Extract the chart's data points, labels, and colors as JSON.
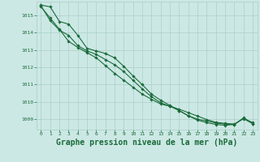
{
  "background_color": "#cce8e4",
  "plot_bg_color": "#cce8e4",
  "grid_color": "#aacfca",
  "line_color": "#1a6b3a",
  "marker_color": "#1a6b3a",
  "title": "Graphe pression niveau de la mer (hPa)",
  "title_fontsize": 7,
  "title_color": "#1a6b3a",
  "xlim": [
    -0.5,
    23.5
  ],
  "ylim": [
    1008.4,
    1015.8
  ],
  "yticks": [
    1009,
    1010,
    1011,
    1012,
    1013,
    1014,
    1015
  ],
  "xticks": [
    0,
    1,
    2,
    3,
    4,
    5,
    6,
    7,
    8,
    9,
    10,
    11,
    12,
    13,
    14,
    15,
    16,
    17,
    18,
    19,
    20,
    21,
    22,
    23
  ],
  "series": [
    [
      1015.6,
      1015.5,
      1014.65,
      1014.5,
      1013.85,
      1013.1,
      1012.95,
      1012.8,
      1012.55,
      1012.05,
      1011.5,
      1011.0,
      1010.45,
      1010.1,
      1009.8,
      1009.5,
      1009.2,
      1008.95,
      1008.8,
      1008.7,
      1008.65,
      1008.7,
      1009.05,
      1008.8
    ],
    [
      1015.55,
      1014.7,
      1014.15,
      1013.85,
      1013.25,
      1012.95,
      1012.75,
      1012.45,
      1012.15,
      1011.75,
      1011.25,
      1010.75,
      1010.3,
      1009.95,
      1009.75,
      1009.5,
      1009.2,
      1009.0,
      1008.9,
      1008.78,
      1008.72,
      1008.7,
      1009.08,
      1008.75
    ],
    [
      1015.5,
      1014.85,
      1014.2,
      1013.5,
      1013.15,
      1012.85,
      1012.55,
      1012.1,
      1011.65,
      1011.25,
      1010.85,
      1010.45,
      1010.15,
      1009.88,
      1009.75,
      1009.58,
      1009.38,
      1009.18,
      1008.98,
      1008.82,
      1008.76,
      1008.72,
      1009.03,
      1008.74
    ]
  ]
}
